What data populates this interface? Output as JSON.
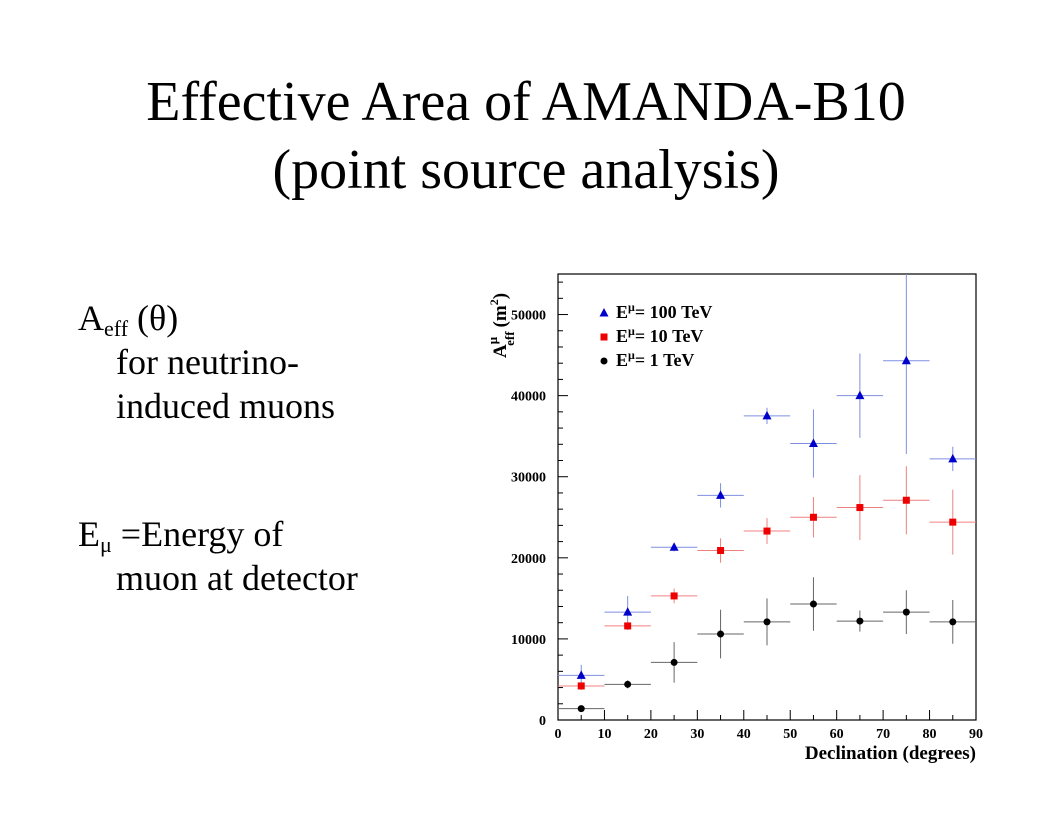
{
  "slide": {
    "title_line1": "Effective Area of AMANDA-B10",
    "title_line2": "(point source analysis)",
    "aeff_main": "A",
    "aeff_sub": "eff",
    "aeff_arg": "(θ)",
    "aeff_desc1": "for neutrino-",
    "aeff_desc2": "induced muons",
    "emu_main": "E",
    "emu_sub": "μ",
    "emu_rest": "=Energy of",
    "emu_desc": "muon at detector"
  },
  "chart_data": {
    "type": "scatter",
    "xlabel": "Declination (degrees)",
    "ylabel_main": "A",
    "ylabel_sup": "μ",
    "ylabel_sub": "eff",
    "ylabel_unit": "(m",
    "ylabel_unit_exp": "2",
    "ylabel_close": ")",
    "xlim": [
      0,
      90
    ],
    "ylim": [
      0,
      55000
    ],
    "x_ticks": [
      0,
      10,
      20,
      30,
      40,
      50,
      60,
      70,
      80,
      90
    ],
    "y_ticks": [
      0,
      10000,
      20000,
      30000,
      40000,
      50000
    ],
    "legend_position": "top-left",
    "grid": false,
    "series": [
      {
        "legend_main": "E",
        "legend_sup": "μ",
        "legend_rest": "= 100 TeV",
        "marker": "triangle",
        "color": "#0000cc",
        "x": [
          5,
          15,
          25,
          35,
          45,
          55,
          65,
          75,
          85
        ],
        "y": [
          5500,
          13300,
          21300,
          27700,
          37500,
          34100,
          40000,
          44300,
          32200
        ],
        "yerr": [
          1300,
          2000,
          500,
          1500,
          1000,
          4200,
          5200,
          11500,
          1500
        ]
      },
      {
        "legend_main": "E",
        "legend_sup": "μ",
        "legend_rest": "= 10 TeV",
        "marker": "square",
        "color": "#ee0000",
        "x": [
          5,
          15,
          25,
          35,
          45,
          55,
          65,
          75,
          85
        ],
        "y": [
          4200,
          11600,
          15300,
          20900,
          23300,
          25000,
          26200,
          27100,
          24400
        ],
        "yerr": [
          500,
          500,
          900,
          1500,
          1600,
          2500,
          4000,
          4200,
          4000
        ]
      },
      {
        "legend_main": "E",
        "legend_sup": "μ",
        "legend_rest": "= 1 TeV",
        "marker": "circle",
        "color": "#000000",
        "x": [
          5,
          15,
          25,
          35,
          45,
          55,
          65,
          75,
          85
        ],
        "y": [
          1400,
          4400,
          7100,
          10600,
          12100,
          14300,
          12200,
          13300,
          12100
        ],
        "yerr": [
          300,
          500,
          2500,
          3000,
          2900,
          3300,
          1300,
          2700,
          2700
        ]
      }
    ]
  }
}
